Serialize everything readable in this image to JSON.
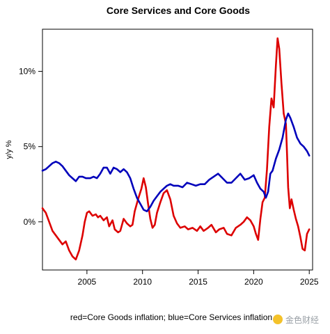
{
  "chart_data": {
    "type": "line",
    "title": "Core Services and Core Goods",
    "xlabel": "red=Core Goods inflation; blue=Core Services inflation",
    "ylabel": "y/y %",
    "xlim": [
      2001.0,
      2025.3
    ],
    "ylim": [
      -3.2,
      12.8
    ],
    "x_ticks": [
      2005,
      2010,
      2015,
      2020,
      2025
    ],
    "y_ticks": [
      {
        "value": 0,
        "label": "0%"
      },
      {
        "value": 5,
        "label": "5%"
      },
      {
        "value": 10,
        "label": "10%"
      }
    ],
    "grid": false,
    "series": [
      {
        "color": "#dd0000",
        "points": [
          [
            2001.0,
            0.9
          ],
          [
            2001.3,
            0.6
          ],
          [
            2001.6,
            0.0
          ],
          [
            2001.9,
            -0.6
          ],
          [
            2002.2,
            -0.9
          ],
          [
            2002.5,
            -1.2
          ],
          [
            2002.8,
            -1.5
          ],
          [
            2003.1,
            -1.3
          ],
          [
            2003.4,
            -1.9
          ],
          [
            2003.7,
            -2.3
          ],
          [
            2004.0,
            -2.5
          ],
          [
            2004.3,
            -1.9
          ],
          [
            2004.6,
            -0.9
          ],
          [
            2004.8,
            0.0
          ],
          [
            2005.0,
            0.6
          ],
          [
            2005.2,
            0.7
          ],
          [
            2005.5,
            0.4
          ],
          [
            2005.8,
            0.5
          ],
          [
            2006.0,
            0.3
          ],
          [
            2006.2,
            0.4
          ],
          [
            2006.5,
            0.1
          ],
          [
            2006.8,
            0.3
          ],
          [
            2007.0,
            -0.3
          ],
          [
            2007.3,
            0.1
          ],
          [
            2007.5,
            -0.5
          ],
          [
            2007.8,
            -0.7
          ],
          [
            2008.0,
            -0.6
          ],
          [
            2008.3,
            0.2
          ],
          [
            2008.6,
            -0.1
          ],
          [
            2008.9,
            -0.3
          ],
          [
            2009.1,
            -0.2
          ],
          [
            2009.3,
            0.7
          ],
          [
            2009.6,
            1.5
          ],
          [
            2009.9,
            2.2
          ],
          [
            2010.1,
            2.9
          ],
          [
            2010.3,
            2.3
          ],
          [
            2010.5,
            1.2
          ],
          [
            2010.7,
            0.2
          ],
          [
            2010.9,
            -0.4
          ],
          [
            2011.1,
            -0.2
          ],
          [
            2011.3,
            0.6
          ],
          [
            2011.6,
            1.3
          ],
          [
            2011.9,
            1.9
          ],
          [
            2012.2,
            2.1
          ],
          [
            2012.5,
            1.5
          ],
          [
            2012.8,
            0.4
          ],
          [
            2013.1,
            -0.1
          ],
          [
            2013.4,
            -0.4
          ],
          [
            2013.8,
            -0.3
          ],
          [
            2014.1,
            -0.5
          ],
          [
            2014.5,
            -0.4
          ],
          [
            2014.9,
            -0.6
          ],
          [
            2015.2,
            -0.3
          ],
          [
            2015.5,
            -0.6
          ],
          [
            2015.9,
            -0.4
          ],
          [
            2016.2,
            -0.2
          ],
          [
            2016.6,
            -0.7
          ],
          [
            2016.9,
            -0.5
          ],
          [
            2017.3,
            -0.4
          ],
          [
            2017.6,
            -0.8
          ],
          [
            2018.0,
            -0.9
          ],
          [
            2018.4,
            -0.4
          ],
          [
            2018.8,
            -0.2
          ],
          [
            2019.1,
            0.0
          ],
          [
            2019.4,
            0.3
          ],
          [
            2019.7,
            0.1
          ],
          [
            2020.0,
            -0.3
          ],
          [
            2020.2,
            -0.8
          ],
          [
            2020.4,
            -1.2
          ],
          [
            2020.6,
            0.2
          ],
          [
            2020.8,
            1.3
          ],
          [
            2021.0,
            1.6
          ],
          [
            2021.2,
            3.5
          ],
          [
            2021.4,
            6.3
          ],
          [
            2021.6,
            8.2
          ],
          [
            2021.8,
            7.6
          ],
          [
            2022.0,
            10.4
          ],
          [
            2022.15,
            12.2
          ],
          [
            2022.3,
            11.5
          ],
          [
            2022.5,
            9.2
          ],
          [
            2022.7,
            7.2
          ],
          [
            2022.9,
            6.5
          ],
          [
            2023.0,
            4.5
          ],
          [
            2023.1,
            2.3
          ],
          [
            2023.25,
            0.9
          ],
          [
            2023.4,
            1.5
          ],
          [
            2023.6,
            0.8
          ],
          [
            2023.8,
            0.2
          ],
          [
            2024.0,
            -0.3
          ],
          [
            2024.2,
            -1.0
          ],
          [
            2024.4,
            -1.8
          ],
          [
            2024.6,
            -1.9
          ],
          [
            2024.8,
            -0.8
          ],
          [
            2025.0,
            -0.5
          ]
        ]
      },
      {
        "color": "#0000bb",
        "points": [
          [
            2001.0,
            3.4
          ],
          [
            2001.3,
            3.5
          ],
          [
            2001.6,
            3.7
          ],
          [
            2001.9,
            3.9
          ],
          [
            2002.2,
            4.0
          ],
          [
            2002.5,
            3.9
          ],
          [
            2002.8,
            3.7
          ],
          [
            2003.1,
            3.4
          ],
          [
            2003.4,
            3.1
          ],
          [
            2003.7,
            2.9
          ],
          [
            2004.0,
            2.7
          ],
          [
            2004.3,
            3.0
          ],
          [
            2004.6,
            3.0
          ],
          [
            2004.9,
            2.9
          ],
          [
            2005.3,
            2.9
          ],
          [
            2005.6,
            3.0
          ],
          [
            2005.9,
            2.9
          ],
          [
            2006.2,
            3.2
          ],
          [
            2006.5,
            3.6
          ],
          [
            2006.8,
            3.6
          ],
          [
            2007.1,
            3.2
          ],
          [
            2007.4,
            3.6
          ],
          [
            2007.7,
            3.5
          ],
          [
            2008.0,
            3.3
          ],
          [
            2008.3,
            3.5
          ],
          [
            2008.6,
            3.3
          ],
          [
            2008.9,
            2.9
          ],
          [
            2009.2,
            2.2
          ],
          [
            2009.5,
            1.6
          ],
          [
            2009.8,
            1.2
          ],
          [
            2010.1,
            0.8
          ],
          [
            2010.4,
            0.7
          ],
          [
            2010.7,
            1.0
          ],
          [
            2011.0,
            1.4
          ],
          [
            2011.3,
            1.7
          ],
          [
            2011.6,
            2.0
          ],
          [
            2011.9,
            2.2
          ],
          [
            2012.2,
            2.4
          ],
          [
            2012.5,
            2.5
          ],
          [
            2012.8,
            2.4
          ],
          [
            2013.2,
            2.4
          ],
          [
            2013.6,
            2.3
          ],
          [
            2014.0,
            2.6
          ],
          [
            2014.4,
            2.5
          ],
          [
            2014.8,
            2.4
          ],
          [
            2015.2,
            2.5
          ],
          [
            2015.6,
            2.5
          ],
          [
            2016.0,
            2.8
          ],
          [
            2016.4,
            3.0
          ],
          [
            2016.8,
            3.2
          ],
          [
            2017.2,
            2.9
          ],
          [
            2017.6,
            2.6
          ],
          [
            2018.0,
            2.6
          ],
          [
            2018.4,
            2.9
          ],
          [
            2018.8,
            3.2
          ],
          [
            2019.2,
            2.8
          ],
          [
            2019.6,
            2.9
          ],
          [
            2020.0,
            3.1
          ],
          [
            2020.3,
            2.6
          ],
          [
            2020.6,
            2.2
          ],
          [
            2020.9,
            2.0
          ],
          [
            2021.1,
            1.6
          ],
          [
            2021.3,
            2.0
          ],
          [
            2021.5,
            3.2
          ],
          [
            2021.7,
            3.4
          ],
          [
            2022.0,
            4.2
          ],
          [
            2022.3,
            4.8
          ],
          [
            2022.6,
            5.6
          ],
          [
            2022.9,
            6.8
          ],
          [
            2023.1,
            7.2
          ],
          [
            2023.3,
            6.9
          ],
          [
            2023.6,
            6.3
          ],
          [
            2023.9,
            5.6
          ],
          [
            2024.2,
            5.2
          ],
          [
            2024.5,
            5.0
          ],
          [
            2024.8,
            4.7
          ],
          [
            2025.0,
            4.4
          ]
        ]
      }
    ]
  },
  "watermark": {
    "text": "金色财经"
  }
}
